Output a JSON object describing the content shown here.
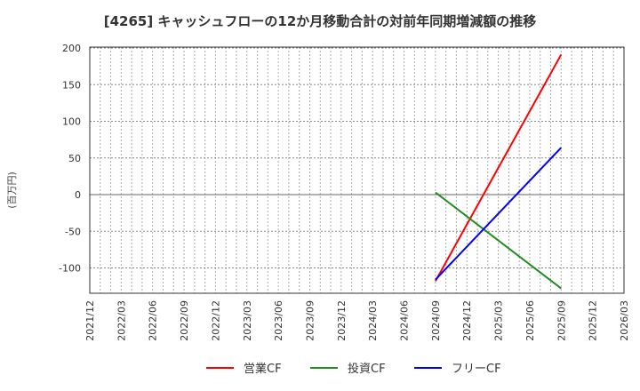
{
  "title": "[4265]  キャッシュフローの12か月移動合計の対前年同期増減額の推移",
  "y_axis_label": "(百万円)",
  "legend": [
    {
      "label": "営業CF",
      "color": "#ff0000"
    },
    {
      "label": "投資CF",
      "color": "#228b22"
    },
    {
      "label": "フリーCF",
      "color": "#0000ff"
    }
  ],
  "chart_data": {
    "type": "line",
    "title": "[4265]  キャッシュフローの12か月移動合計の対前年同期増減額の推移",
    "xlabel": "",
    "ylabel": "(百万円)",
    "ylim": [
      -135,
      200
    ],
    "yticks": [
      200,
      150,
      100,
      50,
      0,
      -50,
      -100
    ],
    "x_tick_labels": [
      "2021/12",
      "2022/03",
      "2022/06",
      "2022/09",
      "2022/12",
      "2023/03",
      "2023/06",
      "2023/09",
      "2023/12",
      "2024/03",
      "2024/06",
      "2024/09",
      "2024/12",
      "2025/03",
      "2025/06",
      "2025/09",
      "2025/12",
      "2026/03"
    ],
    "grid": true,
    "legend_position": "bottom",
    "x": [
      "2024/09",
      "2025/09"
    ],
    "series": [
      {
        "name": "営業CF",
        "color": "#ff0000",
        "values": [
          -118,
          191
        ]
      },
      {
        "name": "投資CF",
        "color": "#228b22",
        "values": [
          3,
          -128
        ]
      },
      {
        "name": "フリーCF",
        "color": "#0000ff",
        "values": [
          -116,
          64
        ]
      }
    ]
  }
}
